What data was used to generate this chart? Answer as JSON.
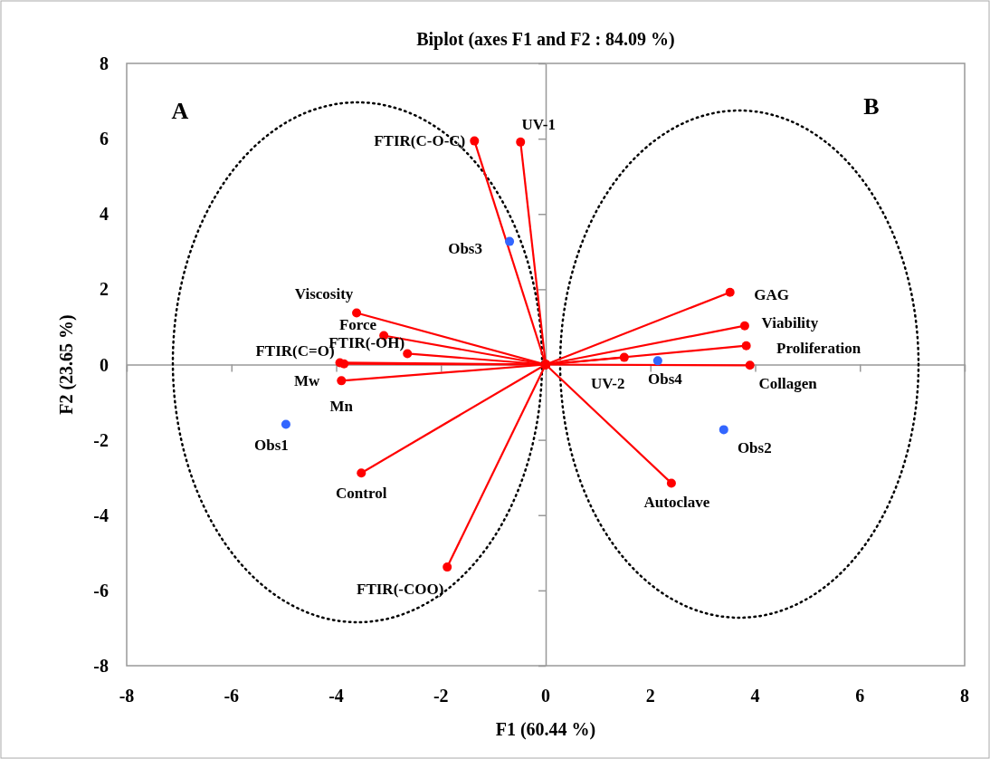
{
  "chart_data": {
    "type": "line",
    "title": "Biplot (axes F1 and F2 : 84.09 %)",
    "xlabel": "F1 (60.44 %)",
    "ylabel": "F2 (23.65 %)",
    "xlim": [
      -8,
      8
    ],
    "xticks": [
      -8,
      -6,
      -4,
      -2,
      0,
      2,
      4,
      6,
      8
    ],
    "ylim": [
      -8,
      8
    ],
    "yticks": [
      -8,
      -6,
      -4,
      -2,
      0,
      2,
      4,
      6,
      8
    ],
    "marker": "circle",
    "line_style": "solid",
    "annotations": [
      "A",
      "B"
    ],
    "series": [
      {
        "name": "FTIR(C-O-C)",
        "color": "#ff0000",
        "x": [
          0,
          -1.36
        ],
        "values": [
          0,
          5.94
        ]
      },
      {
        "name": "UV-1",
        "color": "#ff0000",
        "x": [
          0,
          -0.48
        ],
        "values": [
          0,
          5.91
        ]
      },
      {
        "name": "Viscosity",
        "color": "#ff0000",
        "x": [
          0,
          -3.61
        ],
        "values": [
          0,
          1.37
        ]
      },
      {
        "name": "Force",
        "color": "#ff0000",
        "x": [
          0,
          -3.09
        ],
        "values": [
          0,
          0.77
        ]
      },
      {
        "name": "FTIR(-OH)",
        "color": "#ff0000",
        "x": [
          0,
          -2.64
        ],
        "values": [
          0,
          0.29
        ]
      },
      {
        "name": "FTIR(C=O)",
        "color": "#ff0000",
        "x": [
          0,
          -3.93
        ],
        "values": [
          0,
          0.05
        ]
      },
      {
        "name": "Mw",
        "color": "#ff0000",
        "x": [
          0,
          -3.85
        ],
        "values": [
          0,
          0.02
        ]
      },
      {
        "name": "Mn",
        "color": "#ff0000",
        "x": [
          0,
          -3.9
        ],
        "values": [
          0,
          -0.43
        ]
      },
      {
        "name": "Control",
        "color": "#ff0000",
        "x": [
          0,
          -3.52
        ],
        "values": [
          0,
          -2.88
        ]
      },
      {
        "name": "FTIR(-COO)",
        "color": "#ff0000",
        "x": [
          0,
          -1.88
        ],
        "values": [
          0,
          -5.38
        ]
      },
      {
        "name": "GAG",
        "color": "#ff0000",
        "x": [
          0,
          3.52
        ],
        "values": [
          0,
          1.92
        ]
      },
      {
        "name": "Viability",
        "color": "#ff0000",
        "x": [
          0,
          3.8
        ],
        "values": [
          0,
          1.03
        ]
      },
      {
        "name": "Proliferation",
        "color": "#ff0000",
        "x": [
          0,
          3.83
        ],
        "values": [
          0,
          0.5
        ]
      },
      {
        "name": "Collagen",
        "color": "#ff0000",
        "x": [
          0,
          3.9
        ],
        "values": [
          0,
          -0.02
        ]
      },
      {
        "name": "UV-2",
        "color": "#ff0000",
        "x": [
          0,
          1.5
        ],
        "values": [
          0,
          0.19
        ]
      },
      {
        "name": "Autoclave",
        "color": "#ff0000",
        "x": [
          0,
          2.4
        ],
        "values": [
          0,
          -3.15
        ]
      },
      {
        "name": "Obs1",
        "type": "scatter",
        "color": "#3366ff",
        "x": [
          -4.96
        ],
        "values": [
          -1.59
        ]
      },
      {
        "name": "Obs2",
        "type": "scatter",
        "color": "#3366ff",
        "x": [
          3.4
        ],
        "values": [
          -1.73
        ]
      },
      {
        "name": "Obs3",
        "type": "scatter",
        "color": "#3366ff",
        "x": [
          -0.69
        ],
        "values": [
          3.27
        ]
      },
      {
        "name": "Obs4",
        "type": "scatter",
        "color": "#3366ff",
        "x": [
          2.14
        ],
        "values": [
          0.1
        ]
      }
    ]
  }
}
